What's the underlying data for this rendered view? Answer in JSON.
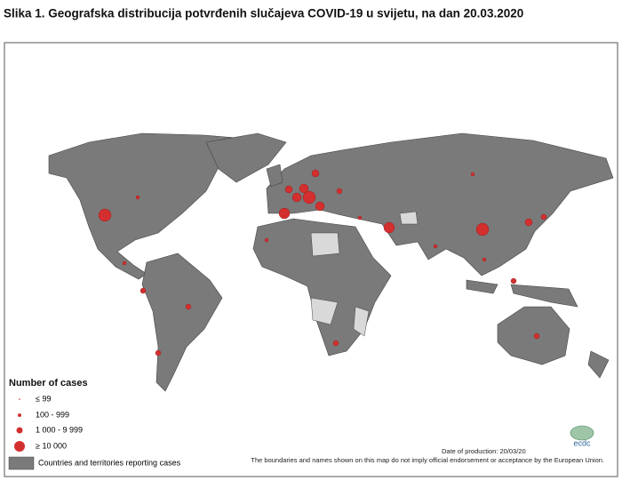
{
  "title": "Slika 1. Geografska distribucija potvrđenih slučajeva COVID-19 u svijetu, na dan 20.03.2020",
  "legend": {
    "title": "Number of cases",
    "items": [
      "≤  99",
      "100 - 999",
      "1 000 - 9 999",
      "≥ 10 000"
    ],
    "reporting": "Countries and territories reporting cases"
  },
  "footer": {
    "date": "Date of production: 20/03/20",
    "disclaimer": "The boundaries and names shown on this map do not imply official endorsement or acceptance by the European Union."
  },
  "logo": "ecdc"
}
